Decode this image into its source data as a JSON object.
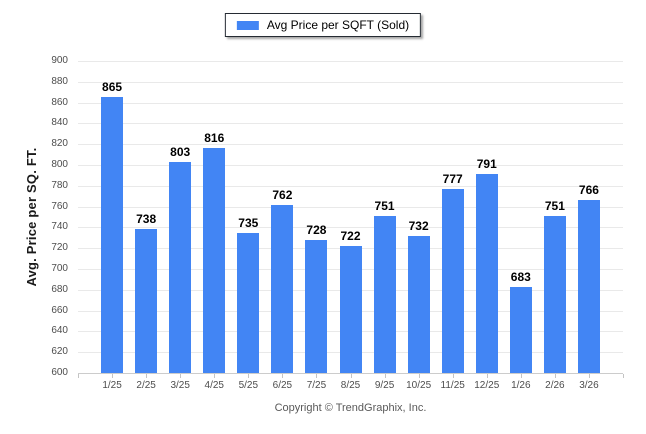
{
  "legend": {
    "label": "Avg Price per SQFT (Sold)"
  },
  "footer": {
    "copyright": "Copyright © TrendGraphix, Inc."
  },
  "chart_data": {
    "type": "bar",
    "title": "",
    "series_name": "Avg Price per SQFT (Sold)",
    "categories": [
      "1/25",
      "2/25",
      "3/25",
      "4/25",
      "5/25",
      "6/25",
      "7/25",
      "8/25",
      "9/25",
      "10/25",
      "11/25",
      "12/25",
      "1/26",
      "2/26",
      "3/26"
    ],
    "values": [
      865,
      738,
      803,
      816,
      735,
      762,
      728,
      722,
      751,
      732,
      777,
      791,
      683,
      751,
      766
    ],
    "xlabel": "",
    "ylabel": "Avg. Price per SQ. FT.",
    "ylim": [
      600,
      900
    ],
    "ytick_step": 20,
    "grid": true,
    "legend_position": "top-center",
    "colors": {
      "bar": "#4285f4",
      "gridline": "#e9e9e9",
      "axis_line": "#cccccc",
      "tick": "#c4c4c4",
      "tick_label": "#4d4d4d",
      "value_label": "#000000",
      "axis_title": "#1a1a1a",
      "legend_border": "#252b33",
      "copyright": "#595959"
    }
  }
}
